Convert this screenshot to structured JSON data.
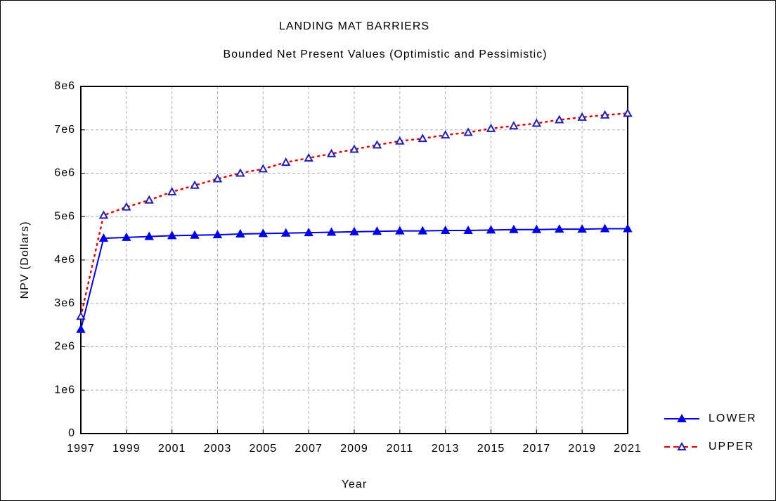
{
  "chart_data": {
    "type": "line",
    "title": "LANDING MAT BARRIERS",
    "subtitle": "Bounded Net Present Values (Optimistic and Pessimistic)",
    "x_label": "Year",
    "y_label": "NPV (Dollars)",
    "x": [
      1997,
      1998,
      1999,
      2000,
      2001,
      2002,
      2003,
      2004,
      2005,
      2006,
      2007,
      2008,
      2009,
      2010,
      2011,
      2012,
      2013,
      2014,
      2015,
      2016,
      2017,
      2018,
      2019,
      2020,
      2021
    ],
    "series": [
      {
        "name": "LOWER",
        "color": "#0000e0",
        "line": "solid",
        "marker": "filled",
        "values": [
          2400000,
          4500000,
          4520000,
          4540000,
          4560000,
          4570000,
          4580000,
          4600000,
          4610000,
          4620000,
          4630000,
          4640000,
          4650000,
          4660000,
          4670000,
          4670000,
          4680000,
          4680000,
          4690000,
          4700000,
          4700000,
          4710000,
          4710000,
          4720000,
          4720000
        ]
      },
      {
        "name": "UPPER",
        "color": "#e00000",
        "marker_color": "#2020b0",
        "line": "dotted",
        "marker": "hollow",
        "values": [
          2700000,
          5030000,
          5220000,
          5380000,
          5570000,
          5720000,
          5870000,
          6000000,
          6100000,
          6250000,
          6350000,
          6450000,
          6550000,
          6650000,
          6740000,
          6800000,
          6880000,
          6940000,
          7030000,
          7090000,
          7150000,
          7230000,
          7290000,
          7340000,
          7380000
        ]
      }
    ],
    "xlim": [
      1997,
      2021
    ],
    "xticks": [
      1997,
      1999,
      2001,
      2003,
      2005,
      2007,
      2009,
      2011,
      2013,
      2015,
      2017,
      2019,
      2021
    ],
    "ylim": [
      0,
      8000000
    ],
    "yticks": [
      0,
      {
        "value": 1000000,
        "label": "1e6"
      },
      {
        "value": 2000000,
        "label": "2e6"
      },
      {
        "value": 3000000,
        "label": "3e6"
      },
      {
        "value": 4000000,
        "label": "4e6"
      },
      {
        "value": 5000000,
        "label": "5e6"
      },
      {
        "value": 6000000,
        "label": "6e6"
      },
      {
        "value": 7000000,
        "label": "7e6"
      },
      {
        "value": 8000000,
        "label": "8e6"
      }
    ],
    "grid": true,
    "legend": "right"
  }
}
